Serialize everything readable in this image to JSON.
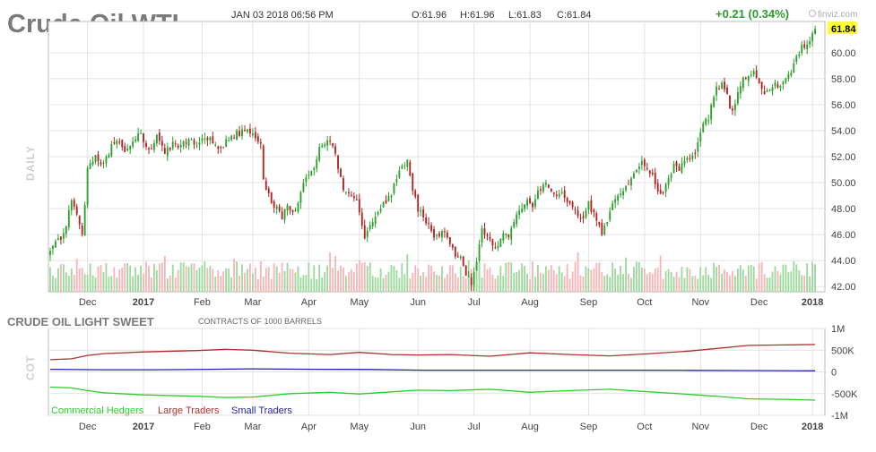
{
  "header": {
    "title": "Crude Oil WTI",
    "datetime": "JAN 03 2018 06:56 PM",
    "open": "O:61.96",
    "high": "H:61.96",
    "low": "L:61.83",
    "close": "C:61.84",
    "change": "+0.21 (0.34%)",
    "logo": "finviz.com"
  },
  "colors": {
    "up": "#2ca02c",
    "down": "#b22222",
    "volume_up": "#9fd89f",
    "volume_down": "#f4b7b7",
    "last_badge": "#ffff33",
    "commercial": "#2ecc2e",
    "large": "#b03030",
    "small": "#2222aa",
    "grid": "#e2e2e2"
  },
  "chart_data": [
    {
      "type": "candlestick",
      "panel_label": "DAILY",
      "xlabel": "",
      "ylabel": "",
      "ylim": [
        41.6,
        62.4
      ],
      "y_ticks": [
        "42.00",
        "44.00",
        "46.00",
        "48.00",
        "50.00",
        "52.00",
        "54.00",
        "56.00",
        "58.00",
        "60.00"
      ],
      "last_price": "61.84",
      "x_ticks": [
        "Dec",
        "2017",
        "Feb",
        "Mar",
        "Apr",
        "May",
        "Jun",
        "Jul",
        "Aug",
        "Sep",
        "Oct",
        "Nov",
        "Dec",
        "2018"
      ],
      "x_range": [
        0,
        290
      ],
      "x_tick_positions": [
        14,
        35,
        57,
        76,
        97,
        116,
        138,
        159,
        180,
        202,
        223,
        244,
        266,
        286
      ],
      "close_anchors": [
        [
          0,
          44.7
        ],
        [
          3,
          45.5
        ],
        [
          5,
          46.0
        ],
        [
          8,
          48.6
        ],
        [
          10,
          47.5
        ],
        [
          12,
          45.8
        ],
        [
          14,
          51.0
        ],
        [
          17,
          52.0
        ],
        [
          20,
          51.3
        ],
        [
          23,
          52.8
        ],
        [
          26,
          53.2
        ],
        [
          28,
          52.3
        ],
        [
          31,
          53.4
        ],
        [
          34,
          53.7
        ],
        [
          37,
          52.5
        ],
        [
          40,
          53.5
        ],
        [
          43,
          52.2
        ],
        [
          46,
          53.0
        ],
        [
          49,
          52.9
        ],
        [
          52,
          53.4
        ],
        [
          55,
          53.0
        ],
        [
          58,
          53.6
        ],
        [
          61,
          53.1
        ],
        [
          64,
          52.5
        ],
        [
          67,
          53.4
        ],
        [
          70,
          53.8
        ],
        [
          73,
          53.9
        ],
        [
          76,
          53.8
        ],
        [
          79,
          53.0
        ],
        [
          80,
          50.3
        ],
        [
          83,
          48.3
        ],
        [
          85,
          48.1
        ],
        [
          87,
          47.4
        ],
        [
          89,
          48.3
        ],
        [
          91,
          47.8
        ],
        [
          93,
          48.5
        ],
        [
          96,
          50.5
        ],
        [
          99,
          51.0
        ],
        [
          101,
          52.8
        ],
        [
          104,
          53.3
        ],
        [
          106,
          53.0
        ],
        [
          108,
          51.2
        ],
        [
          110,
          49.5
        ],
        [
          113,
          49.0
        ],
        [
          115,
          48.6
        ],
        [
          117,
          46.9
        ],
        [
          118,
          45.5
        ],
        [
          120,
          46.8
        ],
        [
          122,
          47.5
        ],
        [
          125,
          48.5
        ],
        [
          128,
          49.0
        ],
        [
          130,
          50.5
        ],
        [
          133,
          51.5
        ],
        [
          134,
          51.8
        ],
        [
          136,
          49.5
        ],
        [
          138,
          48.0
        ],
        [
          140,
          47.5
        ],
        [
          142,
          46.7
        ],
        [
          144,
          45.9
        ],
        [
          146,
          45.8
        ],
        [
          148,
          46.3
        ],
        [
          150,
          45.3
        ],
        [
          152,
          44.5
        ],
        [
          154,
          44.1
        ],
        [
          156,
          42.9
        ],
        [
          158,
          42.3
        ],
        [
          160,
          43.8
        ],
        [
          162,
          46.4
        ],
        [
          164,
          46.0
        ],
        [
          166,
          45.1
        ],
        [
          168,
          44.9
        ],
        [
          170,
          46.1
        ],
        [
          172,
          46.0
        ],
        [
          174,
          47.2
        ],
        [
          177,
          48.0
        ],
        [
          179,
          48.9
        ],
        [
          181,
          48.2
        ],
        [
          183,
          49.4
        ],
        [
          186,
          50.0
        ],
        [
          188,
          49.5
        ],
        [
          190,
          49.0
        ],
        [
          192,
          49.5
        ],
        [
          194,
          48.5
        ],
        [
          196,
          48.0
        ],
        [
          198,
          47.3
        ],
        [
          200,
          47.0
        ],
        [
          202,
          48.5
        ],
        [
          204,
          47.5
        ],
        [
          206,
          46.8
        ],
        [
          207,
          46.0
        ],
        [
          209,
          47.2
        ],
        [
          211,
          48.2
        ],
        [
          213,
          48.9
        ],
        [
          216,
          49.7
        ],
        [
          219,
          50.5
        ],
        [
          222,
          51.5
        ],
        [
          224,
          51.2
        ],
        [
          226,
          50.5
        ],
        [
          228,
          49.5
        ],
        [
          230,
          49.2
        ],
        [
          232,
          50.3
        ],
        [
          234,
          51.5
        ],
        [
          236,
          51.0
        ],
        [
          238,
          51.8
        ],
        [
          240,
          52.0
        ],
        [
          242,
          52.4
        ],
        [
          245,
          54.5
        ],
        [
          247,
          55.0
        ],
        [
          250,
          57.3
        ],
        [
          252,
          57.5
        ],
        [
          254,
          56.6
        ],
        [
          256,
          55.3
        ],
        [
          258,
          56.8
        ],
        [
          260,
          57.9
        ],
        [
          262,
          58.1
        ],
        [
          264,
          58.4
        ],
        [
          266,
          57.8
        ],
        [
          268,
          56.7
        ],
        [
          270,
          57.3
        ],
        [
          272,
          57.6
        ],
        [
          274,
          57.3
        ],
        [
          276,
          58.0
        ],
        [
          278,
          58.5
        ],
        [
          280,
          59.5
        ],
        [
          282,
          60.4
        ],
        [
          284,
          60.6
        ],
        [
          285,
          61.0
        ],
        [
          286,
          61.6
        ],
        [
          287,
          61.84
        ]
      ]
    },
    {
      "type": "line",
      "title": "CRUDE OIL LIGHT SWEET",
      "subtitle": "CONTRACTS OF 1000 BARRELS",
      "panel_label": "COT",
      "ylim": [
        -1000,
        1000
      ],
      "y_ticks": [
        "1M",
        "500K",
        "0",
        "-500K",
        "-1M"
      ],
      "y_tick_values": [
        1000,
        500,
        0,
        -500,
        -1000
      ],
      "x_ticks": [
        "Dec",
        "2017",
        "Feb",
        "Mar",
        "Apr",
        "May",
        "Jun",
        "Jul",
        "Aug",
        "Sep",
        "Oct",
        "Nov",
        "Dec",
        "2018"
      ],
      "x_range": [
        0,
        290
      ],
      "x_tick_positions": [
        14,
        35,
        57,
        76,
        97,
        116,
        138,
        159,
        180,
        202,
        223,
        244,
        266,
        286
      ],
      "series": [
        {
          "name": "Commercial Hedgers",
          "color_key": "commercial",
          "points": [
            [
              0,
              -350
            ],
            [
              8,
              -370
            ],
            [
              14,
              -430
            ],
            [
              20,
              -480
            ],
            [
              35,
              -530
            ],
            [
              55,
              -560
            ],
            [
              66,
              -590
            ],
            [
              76,
              -580
            ],
            [
              90,
              -500
            ],
            [
              105,
              -470
            ],
            [
              116,
              -510
            ],
            [
              128,
              -460
            ],
            [
              138,
              -420
            ],
            [
              150,
              -430
            ],
            [
              165,
              -400
            ],
            [
              180,
              -470
            ],
            [
              195,
              -430
            ],
            [
              210,
              -400
            ],
            [
              225,
              -460
            ],
            [
              240,
              -520
            ],
            [
              252,
              -570
            ],
            [
              262,
              -620
            ],
            [
              275,
              -630
            ],
            [
              287,
              -650
            ]
          ]
        },
        {
          "name": "Large Traders",
          "color_key": "large",
          "points": [
            [
              0,
              280
            ],
            [
              8,
              300
            ],
            [
              14,
              380
            ],
            [
              20,
              420
            ],
            [
              35,
              460
            ],
            [
              55,
              490
            ],
            [
              66,
              520
            ],
            [
              76,
              500
            ],
            [
              90,
              430
            ],
            [
              105,
              400
            ],
            [
              116,
              450
            ],
            [
              128,
              400
            ],
            [
              138,
              390
            ],
            [
              150,
              400
            ],
            [
              165,
              360
            ],
            [
              180,
              440
            ],
            [
              195,
              400
            ],
            [
              210,
              370
            ],
            [
              225,
              420
            ],
            [
              240,
              480
            ],
            [
              252,
              550
            ],
            [
              262,
              610
            ],
            [
              275,
              620
            ],
            [
              287,
              630
            ]
          ]
        },
        {
          "name": "Small Traders",
          "color_key": "small",
          "points": [
            [
              0,
              60
            ],
            [
              20,
              50
            ],
            [
              40,
              50
            ],
            [
              60,
              60
            ],
            [
              76,
              70
            ],
            [
              100,
              60
            ],
            [
              120,
              55
            ],
            [
              140,
              40
            ],
            [
              160,
              40
            ],
            [
              180,
              40
            ],
            [
              200,
              40
            ],
            [
              220,
              40
            ],
            [
              240,
              35
            ],
            [
              260,
              30
            ],
            [
              287,
              25
            ]
          ]
        }
      ]
    }
  ]
}
